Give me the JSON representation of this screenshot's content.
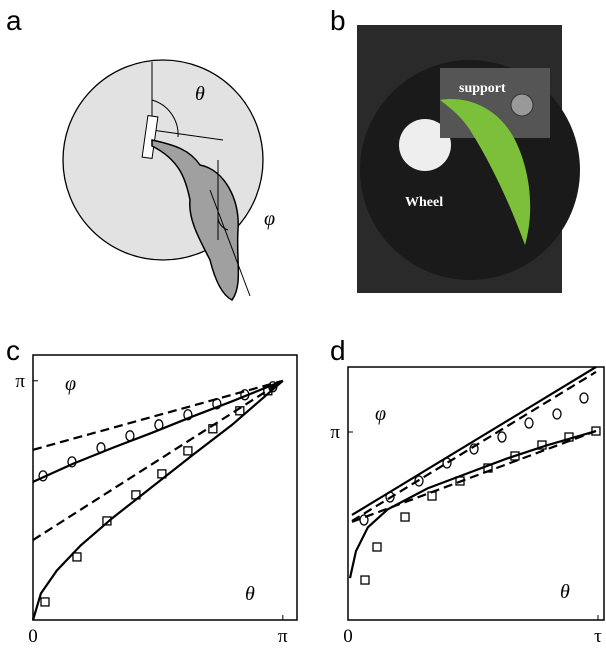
{
  "figure": {
    "panels": [
      {
        "label": "a",
        "texts": [
          "θ",
          "φ"
        ]
      },
      {
        "label": "b",
        "texts": [
          "support",
          "Wheel"
        ]
      }
    ]
  },
  "chart_data": [
    {
      "type": "line",
      "label": "c",
      "annotations": [
        "φ",
        "θ"
      ],
      "xlim": [
        0,
        3.32
      ],
      "ylim": [
        0,
        3.48
      ],
      "xticks": [
        0,
        {
          "value": 3.1416,
          "label": "π"
        }
      ],
      "yticks": [
        {
          "value": 3.1416,
          "label": "π"
        }
      ],
      "series": [
        {
          "style": "scatter",
          "marker": "circle",
          "x": [
            0.126,
            0.49,
            0.855,
            1.219,
            1.583,
            1.948,
            2.312,
            2.664,
            3.016
          ],
          "values": [
            1.893,
            2.077,
            2.261,
            2.419,
            2.563,
            2.695,
            2.839,
            2.958,
            3.063
          ]
        },
        {
          "style": "scatter",
          "marker": "square",
          "x": [
            0.151,
            0.553,
            0.93,
            1.294,
            1.621,
            1.948,
            2.262,
            2.601,
            2.953
          ],
          "values": [
            0.237,
            0.828,
            1.301,
            1.643,
            1.919,
            2.221,
            2.511,
            2.747,
            3.01
          ]
        },
        {
          "style": "solid",
          "x": [
            0,
            0.5,
            1,
            1.5,
            2,
            2.5,
            3.1416
          ],
          "values": [
            1.814,
            2.05,
            2.26,
            2.46,
            2.67,
            2.87,
            3.1416
          ]
        },
        {
          "style": "dashed",
          "x": [
            0,
            3.1416
          ],
          "values": [
            2.235,
            3.1416
          ]
        },
        {
          "style": "solid",
          "x": [
            0,
            0.1,
            0.3,
            0.6,
            1,
            1.5,
            2,
            2.5,
            3.1416
          ],
          "values": [
            0,
            0.35,
            0.65,
            0.98,
            1.34,
            1.75,
            2.16,
            2.56,
            3.1416
          ]
        },
        {
          "style": "dashed",
          "x": [
            0,
            3.1416
          ],
          "values": [
            1.05,
            3.1416
          ]
        }
      ]
    },
    {
      "type": "line",
      "label": "d",
      "annotations": [
        "φ",
        "θ"
      ],
      "xlim": [
        0,
        6.434
      ],
      "ylim": [
        0,
        4.228
      ],
      "xticks": [
        0,
        {
          "value": 6.2832,
          "label": "τ"
        }
      ],
      "yticks": [
        {
          "value": 3.1416,
          "label": "π"
        }
      ],
      "series": [
        {
          "style": "scatter",
          "marker": "circle",
          "x": [
            0.402,
            1.056,
            1.784,
            2.488,
            3.167,
            3.87,
            4.549,
            5.253,
            5.931
          ],
          "values": [
            1.671,
            2.055,
            2.323,
            2.624,
            2.858,
            3.058,
            3.292,
            3.443,
            3.71
          ]
        },
        {
          "style": "scatter",
          "marker": "square",
          "x": [
            0.427,
            0.729,
            1.433,
            2.111,
            2.815,
            3.519,
            4.197,
            4.875,
            5.554,
            6.232
          ],
          "values": [
            0.668,
            1.22,
            1.721,
            2.072,
            2.323,
            2.54,
            2.741,
            2.924,
            3.058,
            3.158
          ]
        },
        {
          "style": "solid",
          "x": [
            0.1,
            6.232
          ],
          "values": [
            1.755,
            4.228
          ]
        },
        {
          "style": "dashed",
          "x": [
            0.1,
            6.232
          ],
          "values": [
            1.655,
            4.145
          ]
        },
        {
          "style": "solid",
          "x": [
            0.05,
            0.2,
            0.5,
            1,
            2,
            3,
            4,
            5,
            6.232
          ],
          "values": [
            0.7,
            1.15,
            1.55,
            1.85,
            2.2,
            2.45,
            2.7,
            2.92,
            3.158
          ]
        },
        {
          "style": "dashed",
          "x": [
            0.1,
            6.232
          ],
          "values": [
            1.64,
            3.158
          ]
        }
      ]
    }
  ]
}
